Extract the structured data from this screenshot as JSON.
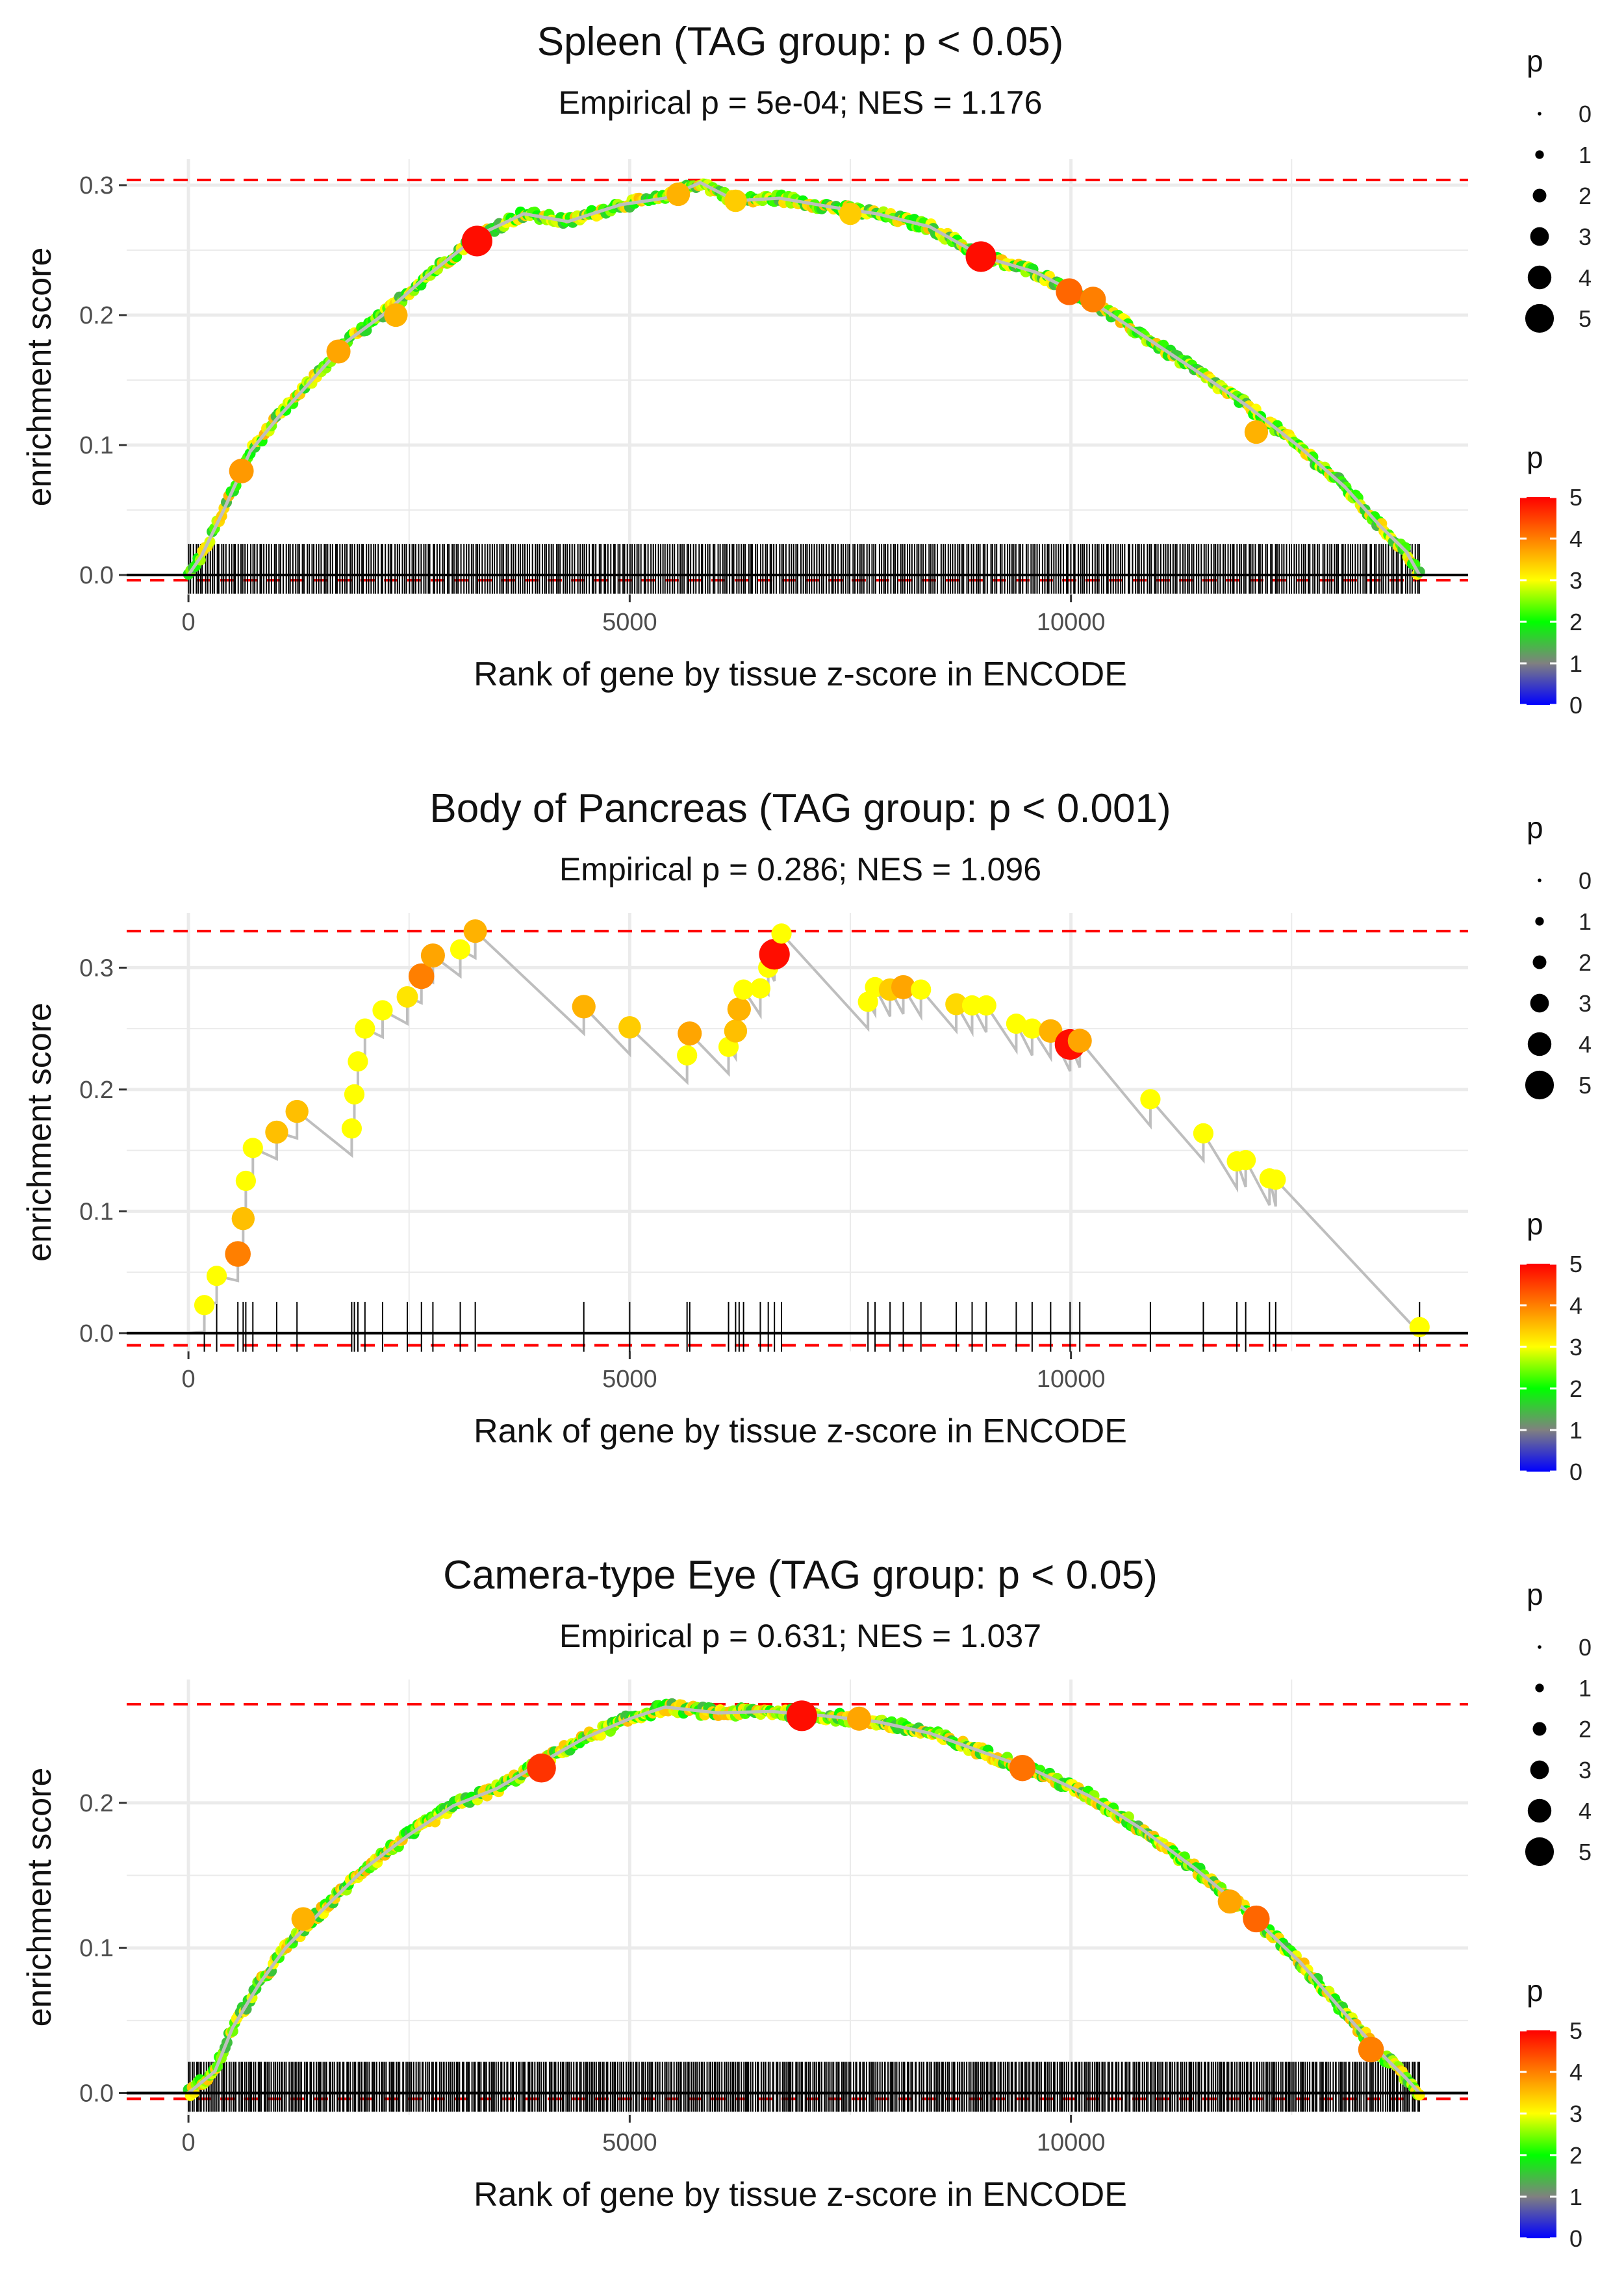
{
  "legend": {
    "size_title": "p",
    "size_values": [
      0,
      1,
      2,
      3,
      4,
      5
    ],
    "color_title": "p",
    "color_values": [
      0,
      1,
      2,
      3,
      4,
      5
    ],
    "color_stops": [
      "#0000FF",
      "#808080",
      "#00FF00",
      "#FFFF00",
      "#FF7F00",
      "#FF0000"
    ]
  },
  "colors": {
    "threshold_line": "#FF0000",
    "baseline": "#000000",
    "path_line": "#BEBEBE",
    "grid": "#EBEBEB"
  },
  "chart_data": [
    {
      "type": "scatter",
      "title": "Spleen (TAG group: p < 0.05)",
      "subtitle": "Empirical p = 5e-04; NES = 1.176",
      "xlabel": "Rank of gene by tissue z-score in ENCODE",
      "ylabel": "enrichment score",
      "xlim": [
        -700,
        14500
      ],
      "ylim": [
        -0.015,
        0.32
      ],
      "xticks": [
        0,
        5000,
        10000
      ],
      "xtick_labels": [
        "0",
        "5000",
        "10000"
      ],
      "yticks": [
        0,
        0.1,
        0.2,
        0.3
      ],
      "ytick_labels": [
        "0.0",
        "0.1",
        "0.2",
        "0.3"
      ],
      "hlines": [
        0.304,
        -0.004
      ],
      "gene_count": 520,
      "x_max": 13950,
      "curve": [
        [
          0,
          0
        ],
        [
          150,
          0.015
        ],
        [
          400,
          0.05
        ],
        [
          700,
          0.095
        ],
        [
          1000,
          0.12
        ],
        [
          1400,
          0.15
        ],
        [
          1800,
          0.18
        ],
        [
          2200,
          0.2
        ],
        [
          2700,
          0.23
        ],
        [
          3300,
          0.262
        ],
        [
          3800,
          0.278
        ],
        [
          4300,
          0.272
        ],
        [
          4900,
          0.285
        ],
        [
          5400,
          0.29
        ],
        [
          5800,
          0.302
        ],
        [
          6200,
          0.288
        ],
        [
          6700,
          0.29
        ],
        [
          7300,
          0.283
        ],
        [
          7800,
          0.278
        ],
        [
          8400,
          0.268
        ],
        [
          9000,
          0.245
        ],
        [
          9600,
          0.233
        ],
        [
          10200,
          0.212
        ],
        [
          10800,
          0.185
        ],
        [
          11400,
          0.158
        ],
        [
          12000,
          0.13
        ],
        [
          12600,
          0.098
        ],
        [
          13100,
          0.068
        ],
        [
          13500,
          0.038
        ],
        [
          13800,
          0.018
        ],
        [
          13950,
          0
        ]
      ],
      "highlights": [
        {
          "x": 600,
          "y": 0.08,
          "p": 3.8
        },
        {
          "x": 1700,
          "y": 0.172,
          "p": 3.7
        },
        {
          "x": 2350,
          "y": 0.2,
          "p": 3.6
        },
        {
          "x": 3270,
          "y": 0.257,
          "p": 4.9
        },
        {
          "x": 5550,
          "y": 0.293,
          "p": 3.6
        },
        {
          "x": 6200,
          "y": 0.288,
          "p": 3.4
        },
        {
          "x": 7500,
          "y": 0.278,
          "p": 3.4
        },
        {
          "x": 8980,
          "y": 0.245,
          "p": 4.9
        },
        {
          "x": 9980,
          "y": 0.218,
          "p": 4.2
        },
        {
          "x": 10250,
          "y": 0.212,
          "p": 4.0
        },
        {
          "x": 12100,
          "y": 0.11,
          "p": 3.6
        }
      ]
    },
    {
      "type": "scatter",
      "title": "Body of Pancreas (TAG group: p < 0.001)",
      "subtitle": "Empirical p = 0.286; NES = 1.096",
      "xlabel": "Rank of gene by tissue z-score in ENCODE",
      "ylabel": "enrichment score",
      "xlim": [
        -700,
        14500
      ],
      "ylim": [
        -0.015,
        0.345
      ],
      "xticks": [
        0,
        5000,
        10000
      ],
      "xtick_labels": [
        "0",
        "5000",
        "10000"
      ],
      "yticks": [
        0,
        0.1,
        0.2,
        0.3
      ],
      "ytick_labels": [
        "0.0",
        "0.1",
        "0.2",
        "0.3"
      ],
      "hlines": [
        0.33,
        -0.01
      ],
      "x_max": 13950,
      "points": [
        {
          "x": 180,
          "y": 0.023,
          "p": 3
        },
        {
          "x": 320,
          "y": 0.047,
          "p": 3
        },
        {
          "x": 560,
          "y": 0.065,
          "p": 4
        },
        {
          "x": 620,
          "y": 0.094,
          "p": 3.5
        },
        {
          "x": 650,
          "y": 0.125,
          "p": 3
        },
        {
          "x": 730,
          "y": 0.152,
          "p": 3
        },
        {
          "x": 1000,
          "y": 0.165,
          "p": 3.5
        },
        {
          "x": 1230,
          "y": 0.182,
          "p": 3.5
        },
        {
          "x": 1850,
          "y": 0.168,
          "p": 3
        },
        {
          "x": 1880,
          "y": 0.196,
          "p": 3
        },
        {
          "x": 1920,
          "y": 0.223,
          "p": 3
        },
        {
          "x": 2000,
          "y": 0.25,
          "p": 3
        },
        {
          "x": 2200,
          "y": 0.265,
          "p": 3
        },
        {
          "x": 2480,
          "y": 0.276,
          "p": 3.2
        },
        {
          "x": 2640,
          "y": 0.293,
          "p": 4
        },
        {
          "x": 2770,
          "y": 0.31,
          "p": 3.7
        },
        {
          "x": 3080,
          "y": 0.315,
          "p": 3
        },
        {
          "x": 3250,
          "y": 0.33,
          "p": 3.6
        },
        {
          "x": 4480,
          "y": 0.268,
          "p": 3.6
        },
        {
          "x": 5000,
          "y": 0.251,
          "p": 3.4
        },
        {
          "x": 5650,
          "y": 0.228,
          "p": 3
        },
        {
          "x": 5680,
          "y": 0.246,
          "p": 3.7
        },
        {
          "x": 6120,
          "y": 0.235,
          "p": 3
        },
        {
          "x": 6200,
          "y": 0.248,
          "p": 3.5
        },
        {
          "x": 6240,
          "y": 0.266,
          "p": 3.6
        },
        {
          "x": 6290,
          "y": 0.282,
          "p": 3
        },
        {
          "x": 6480,
          "y": 0.283,
          "p": 3
        },
        {
          "x": 6570,
          "y": 0.3,
          "p": 3
        },
        {
          "x": 6640,
          "y": 0.311,
          "p": 4.9
        },
        {
          "x": 6720,
          "y": 0.328,
          "p": 3
        },
        {
          "x": 7700,
          "y": 0.272,
          "p": 3
        },
        {
          "x": 7780,
          "y": 0.284,
          "p": 3
        },
        {
          "x": 7950,
          "y": 0.282,
          "p": 3.4
        },
        {
          "x": 8100,
          "y": 0.284,
          "p": 3.7
        },
        {
          "x": 8300,
          "y": 0.282,
          "p": 3
        },
        {
          "x": 8700,
          "y": 0.27,
          "p": 3.3
        },
        {
          "x": 8880,
          "y": 0.269,
          "p": 3
        },
        {
          "x": 9040,
          "y": 0.269,
          "p": 3
        },
        {
          "x": 9380,
          "y": 0.254,
          "p": 3
        },
        {
          "x": 9560,
          "y": 0.25,
          "p": 3
        },
        {
          "x": 9770,
          "y": 0.248,
          "p": 3.6
        },
        {
          "x": 9990,
          "y": 0.237,
          "p": 4.9
        },
        {
          "x": 10100,
          "y": 0.24,
          "p": 3.7
        },
        {
          "x": 10900,
          "y": 0.192,
          "p": 3
        },
        {
          "x": 11500,
          "y": 0.164,
          "p": 3
        },
        {
          "x": 11880,
          "y": 0.141,
          "p": 3
        },
        {
          "x": 11980,
          "y": 0.142,
          "p": 3
        },
        {
          "x": 12250,
          "y": 0.127,
          "p": 3
        },
        {
          "x": 12320,
          "y": 0.126,
          "p": 3
        },
        {
          "x": 13950,
          "y": 0.005,
          "p": 3
        }
      ]
    },
    {
      "type": "scatter",
      "title": "Camera-type Eye (TAG group: p < 0.05)",
      "subtitle": "Empirical p = 0.631; NES = 1.037",
      "xlabel": "Rank of gene by tissue z-score in ENCODE",
      "ylabel": "enrichment score",
      "xlim": [
        -700,
        14500
      ],
      "ylim": [
        -0.015,
        0.285
      ],
      "xticks": [
        0,
        5000,
        10000
      ],
      "xtick_labels": [
        "0",
        "5000",
        "10000"
      ],
      "yticks": [
        0,
        0.1,
        0.2
      ],
      "ytick_labels": [
        "0.0",
        "0.1",
        "0.2"
      ],
      "hlines": [
        0.268,
        -0.004
      ],
      "gene_count": 640,
      "x_max": 13950,
      "curve": [
        [
          0,
          0
        ],
        [
          300,
          0.015
        ],
        [
          500,
          0.045
        ],
        [
          800,
          0.075
        ],
        [
          1100,
          0.1
        ],
        [
          1500,
          0.125
        ],
        [
          2000,
          0.155
        ],
        [
          2500,
          0.178
        ],
        [
          3000,
          0.198
        ],
        [
          3500,
          0.21
        ],
        [
          4000,
          0.228
        ],
        [
          4500,
          0.245
        ],
        [
          5000,
          0.258
        ],
        [
          5400,
          0.266
        ],
        [
          6000,
          0.262
        ],
        [
          6600,
          0.263
        ],
        [
          7200,
          0.26
        ],
        [
          7800,
          0.256
        ],
        [
          8400,
          0.248
        ],
        [
          9000,
          0.235
        ],
        [
          9600,
          0.222
        ],
        [
          10200,
          0.205
        ],
        [
          10800,
          0.182
        ],
        [
          11400,
          0.155
        ],
        [
          12000,
          0.125
        ],
        [
          12600,
          0.09
        ],
        [
          13100,
          0.055
        ],
        [
          13500,
          0.028
        ],
        [
          13800,
          0.01
        ],
        [
          13950,
          0
        ]
      ],
      "highlights": [
        {
          "x": 1300,
          "y": 0.12,
          "p": 3.6
        },
        {
          "x": 4000,
          "y": 0.224,
          "p": 4.6
        },
        {
          "x": 6950,
          "y": 0.26,
          "p": 4.9
        },
        {
          "x": 7600,
          "y": 0.258,
          "p": 3.7
        },
        {
          "x": 9450,
          "y": 0.224,
          "p": 4.1
        },
        {
          "x": 11800,
          "y": 0.132,
          "p": 3.7
        },
        {
          "x": 12100,
          "y": 0.12,
          "p": 4.2
        },
        {
          "x": 13400,
          "y": 0.03,
          "p": 4
        }
      ]
    }
  ]
}
